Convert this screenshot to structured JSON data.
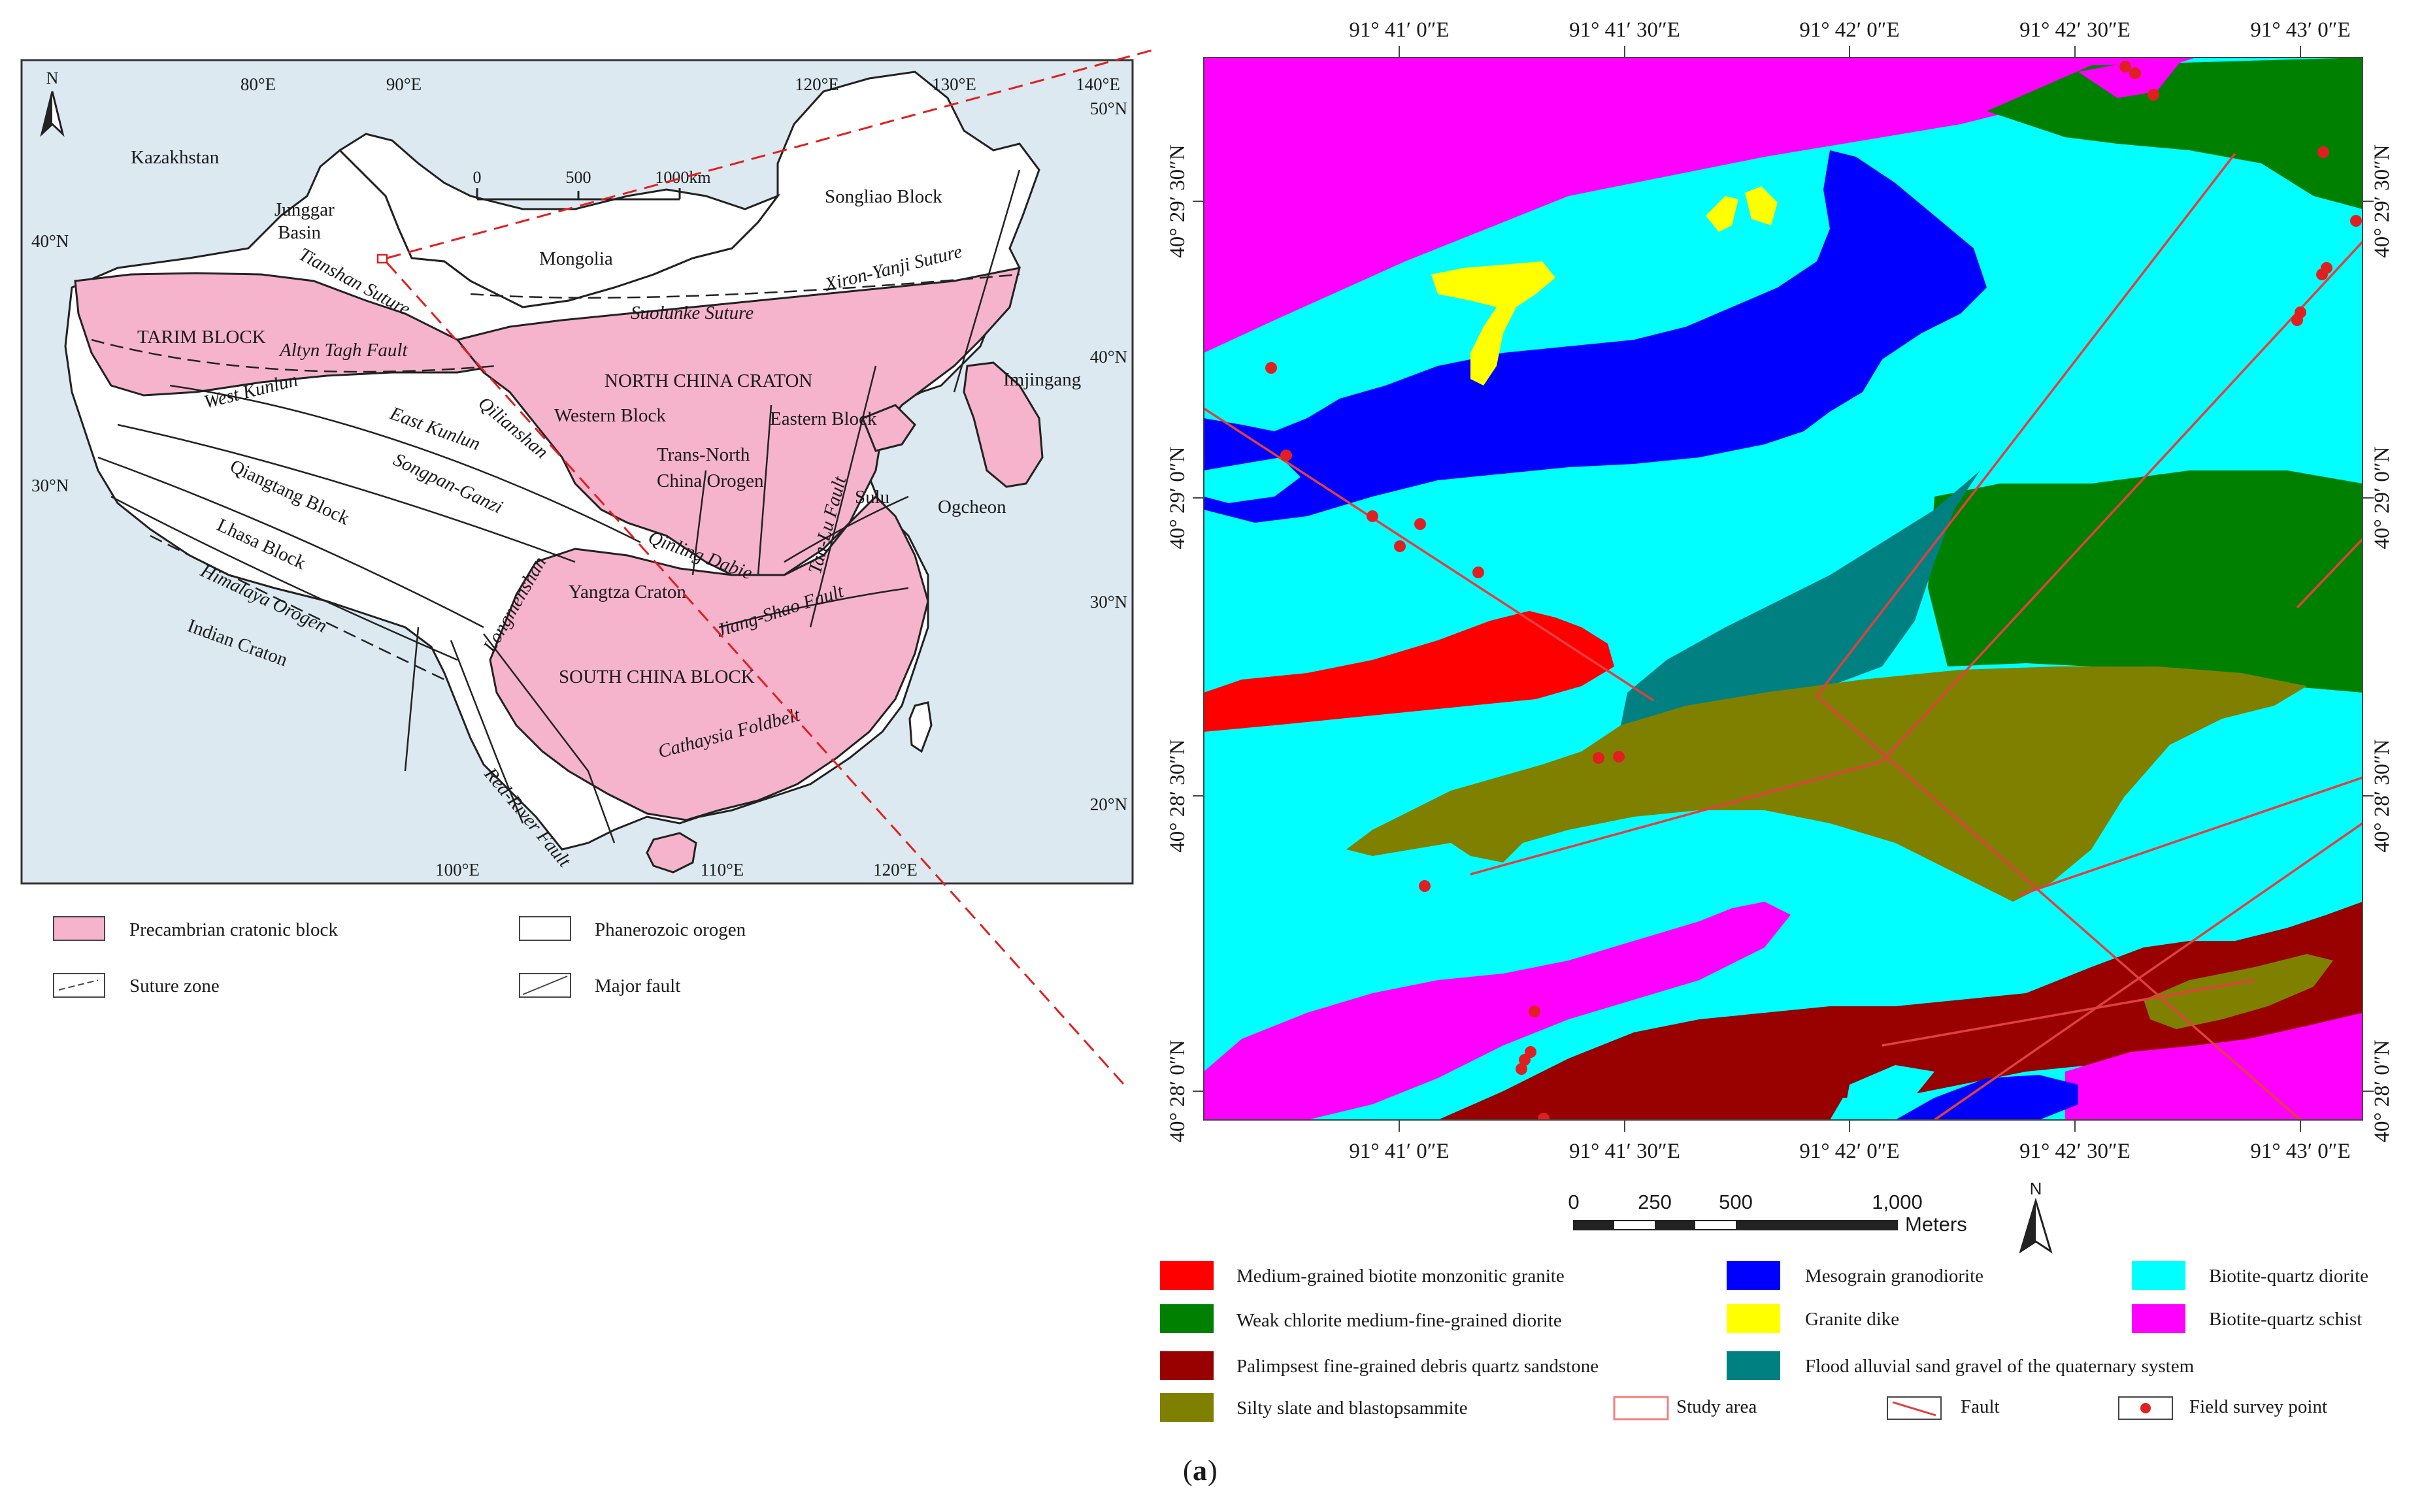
{
  "inset_map": {
    "lon_ticks_top": [
      "80°E",
      "90°E",
      "120°E",
      "130°E",
      "140°E"
    ],
    "lon_ticks_bottom": [
      "100°E",
      "110°E",
      "120°E"
    ],
    "lat_ticks_left": [
      "40°N",
      "30°N"
    ],
    "lat_ticks_right": [
      "50°N",
      "40°N",
      "30°N",
      "20°N"
    ],
    "north_label": "N",
    "scale_labels": [
      "0",
      "500",
      "1000km"
    ],
    "place_labels": {
      "kazakhstan": "Kazakhstan",
      "junggar": "Junggar",
      "basin": "Basin",
      "mongolia": "Mongolia",
      "songliao": "Songliao Block",
      "xiron": "Xiron-Yanji Suture",
      "suolunke": "Suolunke Suture",
      "tianshan": "Tianshan Suture",
      "tarim": "TARIM BLOCK",
      "altyn": "Altyn Tagh Fault",
      "west_kunlun": "West Kunlun",
      "east_kunlun": "East Kunlun",
      "north_china": "NORTH CHINA CRATON",
      "western_block": "Western Block",
      "eastern_block": "Eastern Block",
      "imjingang": "Imjingang",
      "trans_north": "Trans-North",
      "china_orogen": "China Orogen",
      "qilianshan": "Qilianshan",
      "songpan": "Songpan-Ganzi",
      "qiangtang": "Qiangtang Block",
      "lhasa": "Lhasa Block",
      "himalaya": "Himalaya Orogen",
      "indian": "Indian Craton",
      "longmenshan": "Longmenshan",
      "qinling": "Qinling Dabie",
      "tanlu": "Tan-Lu Fault",
      "sulu": "Sulu",
      "ogcheon": "Ogcheon",
      "yangtza": "Yangtza Craton",
      "jiangshao": "Jiang-Shao Fault",
      "south_china": "SOUTH CHINA BLOCK",
      "cathaysia": "Cathaysia Foldbelt",
      "red_river": "Red-River Fault"
    },
    "legend": [
      {
        "label": "Precambrian cratonic block"
      },
      {
        "label": "Phanerozoic orogen"
      },
      {
        "label": "Suture zone"
      },
      {
        "label": "Major fault"
      }
    ],
    "colors": {
      "sea": "#dce9f0",
      "craton": "#f6b3cc",
      "orogen": "#ffffff"
    }
  },
  "geo_map": {
    "lon_ticks": [
      "91° 41′ 0″E",
      "91° 41′ 30″E",
      "91° 42′ 0″E",
      "91° 42′ 30″E",
      "91° 43′ 0″E"
    ],
    "lat_ticks": [
      "40° 29′ 30″N",
      "40° 29′ 0″N",
      "40° 28′ 30″N",
      "40° 28′ 0″N"
    ],
    "scale_labels": [
      "0",
      "250",
      "500",
      "1,000"
    ],
    "scale_unit": "Meters",
    "north_label": "N",
    "colors": {
      "biotite_quartz_diorite": "#00ffff",
      "biotite_quartz_schist": "#ff00ff",
      "monzonitic_granite": "#ff0000",
      "granodiorite": "#0000ff",
      "granite_dike": "#ffff00",
      "chlorite_diorite": "#008000",
      "sandstone": "#990000",
      "alluvial": "#008080",
      "slate": "#808000",
      "fault": "#e04040",
      "survey_point": "#e02020"
    }
  },
  "legend": [
    {
      "label": "Medium-grained biotite monzonitic granite",
      "color": "#ff0000"
    },
    {
      "label": "Mesograin granodiorite",
      "color": "#0000ff"
    },
    {
      "label": "Biotite-quartz diorite",
      "color": "#00ffff"
    },
    {
      "label": "Weak chlorite medium-fine-grained diorite",
      "color": "#008000"
    },
    {
      "label": "Granite dike",
      "color": "#ffff00"
    },
    {
      "label": "Biotite-quartz schist",
      "color": "#ff00ff"
    },
    {
      "label": "Palimpsest fine-grained debris quartz sandstone",
      "color": "#990000"
    },
    {
      "label": "Flood alluvial sand gravel of the quaternary system",
      "color": "#008080"
    },
    {
      "label": "Silty slate and blastopsammite",
      "color": "#808000"
    },
    {
      "label": "Study area"
    },
    {
      "label": "Fault"
    },
    {
      "label": "Field survey point"
    }
  ],
  "caption_label": "a"
}
